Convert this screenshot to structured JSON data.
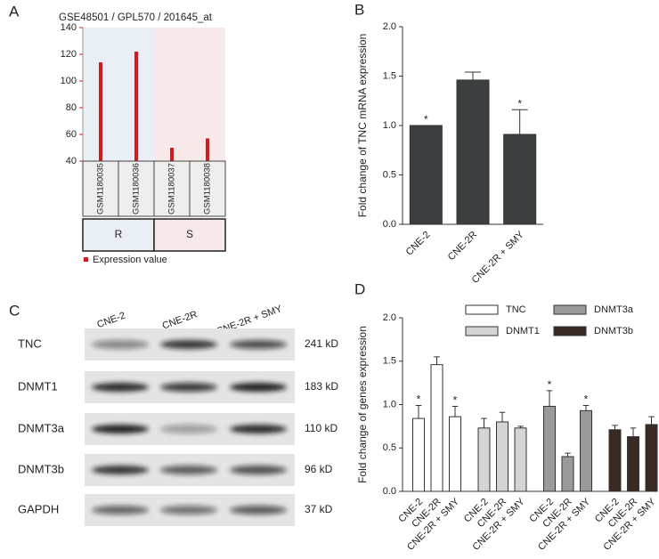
{
  "chart_data": [
    {
      "panel": "A",
      "type": "profile",
      "title": "GSE48501 / GPL570 / 201645_at",
      "categories": [
        "GSM1180035",
        "GSM1180036",
        "GSM1180037",
        "GSM1180038"
      ],
      "series": [
        {
          "name": "Expression value",
          "color": "#d9181e",
          "values": [
            114,
            122,
            50,
            57
          ]
        }
      ],
      "ylim": [
        40,
        140
      ],
      "yticks": [
        40,
        60,
        80,
        100,
        120,
        140
      ],
      "tick_color": "#d9181e",
      "group_labels": [
        "R",
        "S"
      ],
      "group_colors": [
        "#e9eff4",
        "#f7e9ea"
      ]
    },
    {
      "panel": "B",
      "type": "bar",
      "ylabel": "Fold change of TNC mRNA expression",
      "categories": [
        "CNE-2",
        "CNE-2R",
        "CNE-2R + SMY"
      ],
      "series": [
        {
          "color": "#3b3f3f",
          "values": [
            1.0,
            1.46,
            0.91
          ],
          "errors": [
            0,
            0.08,
            0.25
          ],
          "significance": [
            "*",
            null,
            "*"
          ]
        }
      ],
      "ylim": [
        0,
        2
      ],
      "yticks": [
        {
          "value": 0,
          "label": "0.0"
        },
        0.5,
        {
          "value": 1,
          "label": "1.0"
        },
        1.5,
        {
          "value": 2,
          "label": "2.0"
        }
      ]
    },
    {
      "panel": "D",
      "type": "bar",
      "ylabel": "Fold change of genes expression",
      "categories": [
        "CNE-2",
        "CNE-2R",
        "CNE-2R + SMY"
      ],
      "series": [
        {
          "name": "TNC",
          "color": "#ffffff",
          "values": [
            0.84,
            1.46,
            0.86
          ],
          "errors": [
            0.15,
            0.09,
            0.12
          ],
          "significance": [
            "*",
            null,
            "*"
          ]
        },
        {
          "name": "DNMT1",
          "color": "#d4d4d4",
          "values": [
            0.73,
            0.8,
            0.73
          ],
          "errors": [
            0.11,
            0.11,
            0.02
          ],
          "significance": [
            null,
            null,
            null
          ]
        },
        {
          "name": "DNMT3a",
          "color": "#9a9a9a",
          "values": [
            0.98,
            0.4,
            0.93
          ],
          "errors": [
            0.18,
            0.04,
            0.06
          ],
          "significance": [
            "*",
            null,
            "*"
          ]
        },
        {
          "name": "DNMT3b",
          "color": "#3a2a24",
          "values": [
            0.71,
            0.63,
            0.77
          ],
          "errors": [
            0.05,
            0.1,
            0.09
          ],
          "significance": [
            null,
            null,
            null
          ]
        }
      ],
      "ylim": [
        0,
        2
      ],
      "yticks": [
        {
          "value": 0,
          "label": "0.0"
        },
        0.5,
        {
          "value": 1,
          "label": "1.0"
        },
        1.5,
        {
          "value": 2,
          "label": "2.0"
        }
      ]
    }
  ],
  "blot": {
    "panel": "C",
    "columns": [
      "CNE-2",
      "CNE-2R",
      "CNE-2R + SMY"
    ],
    "rows": [
      {
        "protein": "TNC",
        "size": "241 kD"
      },
      {
        "protein": "DNMT1",
        "size": "183 kD"
      },
      {
        "protein": "DNMT3a",
        "size": "110 kD"
      },
      {
        "protein": "DNMT3b",
        "size": "96 kD"
      },
      {
        "protein": "GAPDH",
        "size": "37 kD"
      }
    ]
  }
}
